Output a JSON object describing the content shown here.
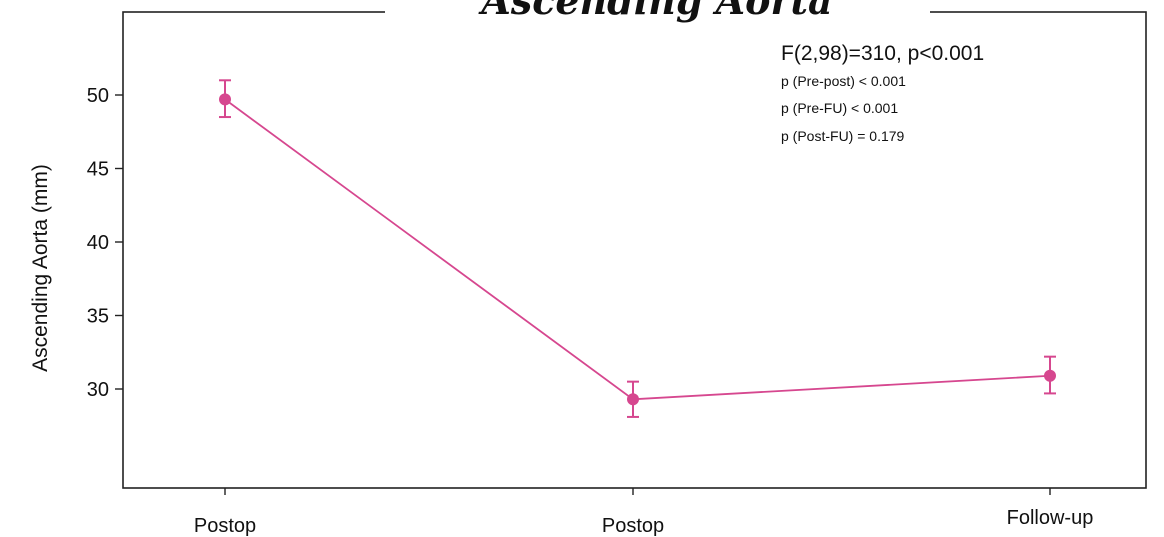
{
  "chart_data": {
    "type": "line",
    "title": "Ascending Aorta",
    "xlabel": "",
    "ylabel": "Ascending Aorta (mm)",
    "categories": [
      "Postop",
      "Postop",
      "Follow-up"
    ],
    "ylim": [
      25,
      55
    ],
    "yticks": [
      30,
      35,
      40,
      45,
      50
    ],
    "grid": false,
    "series": [
      {
        "values": [
          49.7,
          29.3,
          30.9
        ],
        "error_low": [
          48.5,
          28.1,
          29.7
        ],
        "error_high": [
          51.0,
          30.5,
          32.2
        ],
        "color": "#d6478f"
      }
    ],
    "annotations": [
      "F(2,98)=310, p<0.001",
      "p (Pre-post) < 0.001",
      "p (Pre-FU) < 0.001",
      "p (Post-FU) = 0.179"
    ]
  }
}
